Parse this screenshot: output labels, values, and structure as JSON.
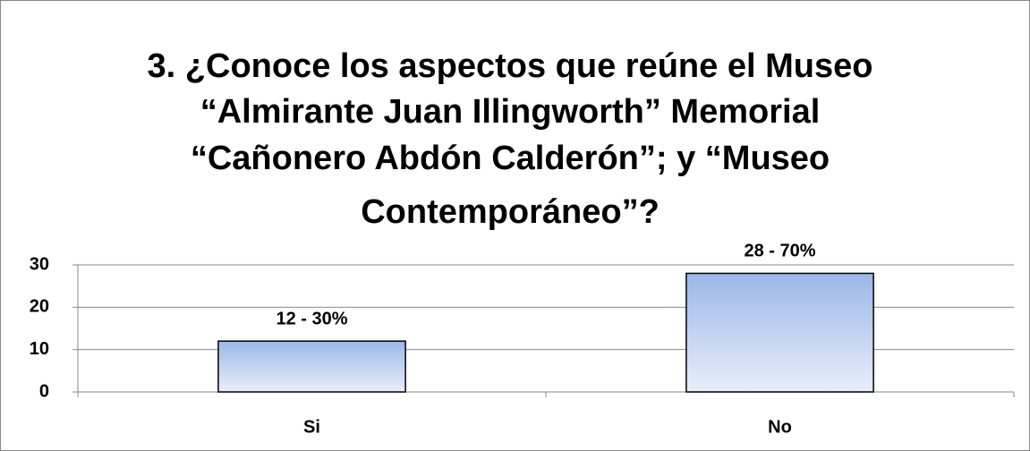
{
  "chart_data": {
    "type": "bar",
    "title": [
      "3. ¿Conoce los aspectos que reúne el Museo",
      "“Almirante Juan Illingworth” Memorial",
      "“Cañonero Abdón Calderón”; y “Museo",
      "Contemporáneo”?"
    ],
    "categories": [
      "Si",
      "No"
    ],
    "values": [
      12,
      28
    ],
    "value_labels": [
      "12 - 30%",
      "28 - 70%"
    ],
    "color": "#9bb7e8",
    "ylim": [
      0,
      30
    ],
    "yticks": [
      0,
      10,
      20,
      30
    ],
    "grid": true
  }
}
